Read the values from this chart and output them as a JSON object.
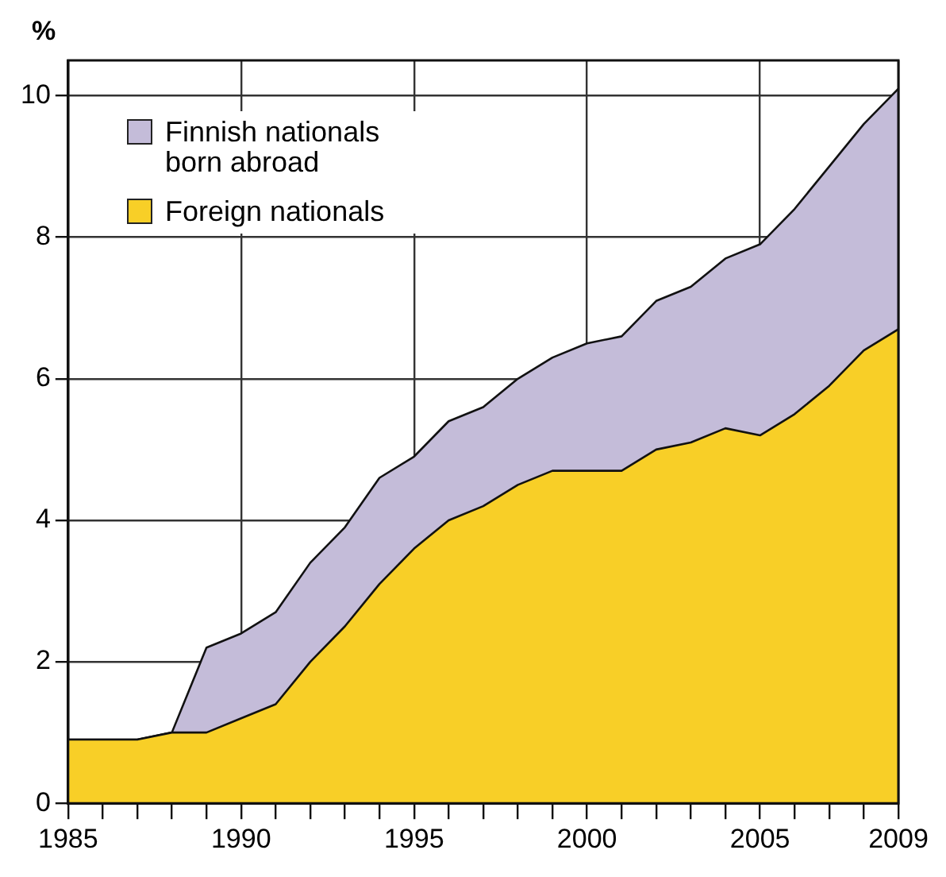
{
  "chart_data": {
    "type": "area",
    "stacked": true,
    "ylabel": "%",
    "x": [
      1985,
      1986,
      1987,
      1988,
      1989,
      1990,
      1991,
      1992,
      1993,
      1994,
      1995,
      1996,
      1997,
      1998,
      1999,
      2000,
      2001,
      2002,
      2003,
      2004,
      2005,
      2006,
      2007,
      2008,
      2009
    ],
    "series": [
      {
        "name": "Foreign nationals",
        "color": "#f8cf27",
        "values": [
          0.9,
          0.9,
          0.9,
          1.0,
          1.0,
          1.2,
          1.4,
          2.0,
          2.5,
          3.1,
          3.6,
          4.0,
          4.2,
          4.5,
          4.7,
          4.7,
          4.7,
          5.0,
          5.1,
          5.3,
          5.2,
          5.5,
          5.9,
          6.4,
          6.7
        ]
      },
      {
        "name": "Finnish nationals born abroad",
        "color": "#c4bcd9",
        "values": [
          0,
          0,
          0,
          0,
          1.2,
          1.2,
          1.3,
          1.4,
          1.4,
          1.5,
          1.3,
          1.4,
          1.4,
          1.5,
          1.6,
          1.8,
          1.9,
          2.1,
          2.2,
          2.4,
          2.7,
          2.9,
          3.1,
          3.2,
          3.4
        ]
      }
    ],
    "xlim": [
      1985,
      2009
    ],
    "xticks": [
      1985,
      {
        "value": 1986,
        "label": null
      },
      {
        "value": 1987,
        "label": null
      },
      {
        "value": 1988,
        "label": null
      },
      {
        "value": 1989,
        "label": null
      },
      1990,
      {
        "value": 1991,
        "label": null
      },
      {
        "value": 1992,
        "label": null
      },
      {
        "value": 1993,
        "label": null
      },
      {
        "value": 1994,
        "label": null
      },
      1995,
      {
        "value": 1996,
        "label": null
      },
      {
        "value": 1997,
        "label": null
      },
      {
        "value": 1998,
        "label": null
      },
      {
        "value": 1999,
        "label": null
      },
      2000,
      {
        "value": 2001,
        "label": null
      },
      {
        "value": 2002,
        "label": null
      },
      {
        "value": 2003,
        "label": null
      },
      {
        "value": 2004,
        "label": null
      },
      2005,
      {
        "value": 2006,
        "label": null
      },
      {
        "value": 2007,
        "label": null
      },
      {
        "value": 2008,
        "label": null
      },
      2009
    ],
    "ylim": [
      0,
      10.5
    ],
    "yticks": [
      0,
      2,
      4,
      6,
      8,
      10
    ],
    "grid": true,
    "legend": "top left"
  }
}
